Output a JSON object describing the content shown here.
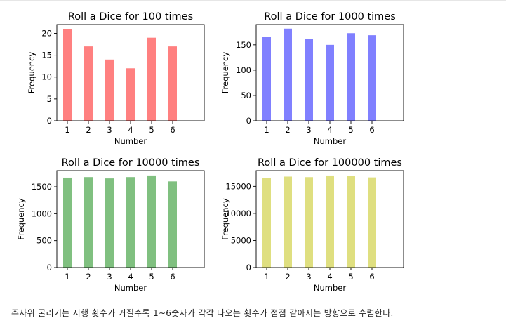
{
  "caption": "주사위 굴리기는 시행 횟수가 커질수록 1~6숫자가 각각 나오는 횟수가 점점 같아지는 방향으로 수렴한다.",
  "chart_data": [
    {
      "type": "bar",
      "title": "Roll a Dice for 100 times",
      "xlabel": "Number",
      "ylabel": "Frequency",
      "categories": [
        1,
        2,
        3,
        4,
        5,
        6
      ],
      "values": [
        21,
        17,
        14,
        12,
        19,
        17
      ],
      "ylim": [
        0,
        22
      ],
      "yticks": [
        0,
        5,
        10,
        15,
        20
      ],
      "color": "#ff8080"
    },
    {
      "type": "bar",
      "title": "Roll a Dice for 1000 times",
      "xlabel": "Number",
      "ylabel": "Frequency",
      "categories": [
        1,
        2,
        3,
        4,
        5,
        6
      ],
      "values": [
        166,
        182,
        162,
        150,
        173,
        169
      ],
      "ylim": [
        0,
        190
      ],
      "yticks": [
        0,
        50,
        100,
        150
      ],
      "color": "#8080ff"
    },
    {
      "type": "bar",
      "title": "Roll a Dice for 10000 times",
      "xlabel": "Number",
      "ylabel": "Frequency",
      "categories": [
        1,
        2,
        3,
        4,
        5,
        6
      ],
      "values": [
        1670,
        1680,
        1655,
        1680,
        1710,
        1600
      ],
      "ylim": [
        0,
        1800
      ],
      "yticks": [
        0,
        500,
        1000,
        1500
      ],
      "color": "#80c080"
    },
    {
      "type": "bar",
      "title": "Roll a Dice for 100000 times",
      "xlabel": "Number",
      "ylabel": "Frequency",
      "categories": [
        1,
        2,
        3,
        4,
        5,
        6
      ],
      "values": [
        16500,
        16800,
        16700,
        17000,
        16900,
        16650
      ],
      "ylim": [
        0,
        17900
      ],
      "yticks": [
        0,
        5000,
        10000,
        15000
      ],
      "color": "#dfdf80"
    }
  ]
}
